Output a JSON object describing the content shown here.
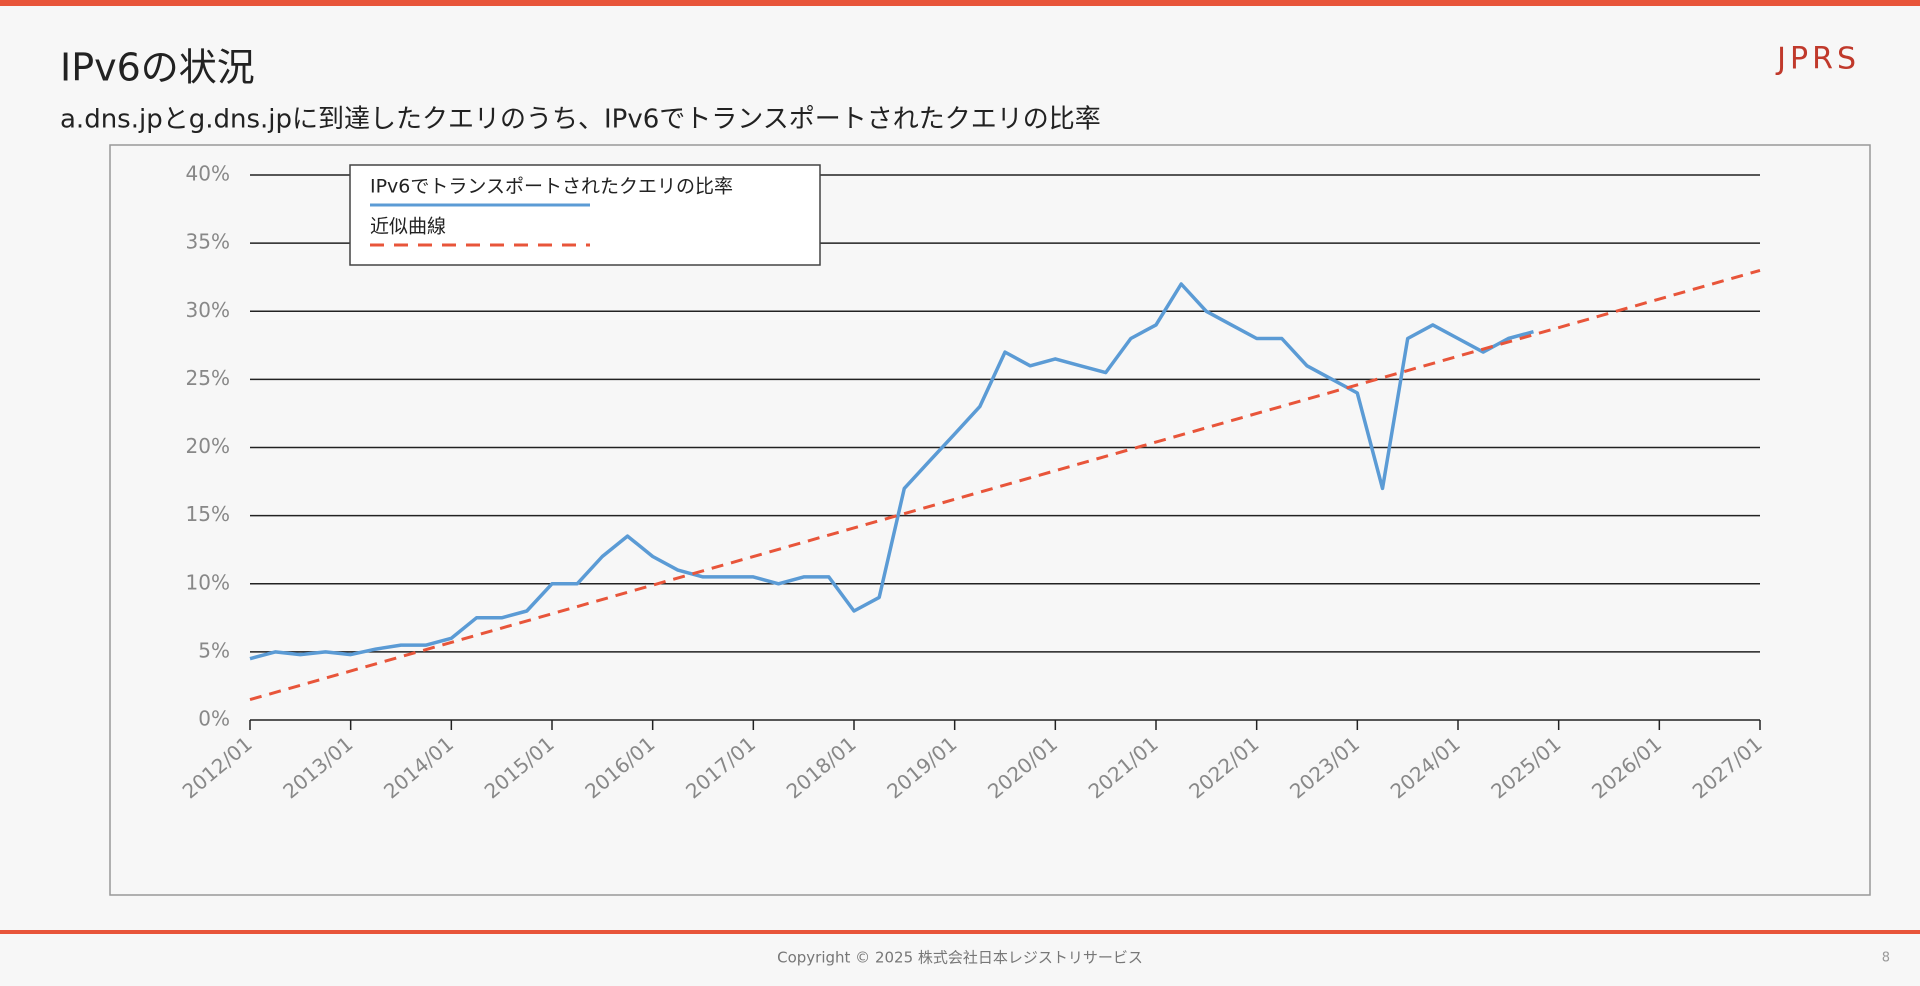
{
  "header": {
    "title": "IPv6の状況",
    "subtitle": "a.dns.jpとg.dns.jpに到達したクエリのうち、IPv6でトランスポートされたクエリの比率",
    "logo": "JPRS"
  },
  "footer": {
    "copyright": "Copyright © 2025 株式会社日本レジストリサービス",
    "page_number": "8"
  },
  "chart_data": {
    "type": "line",
    "series": [
      {
        "name": "IPv6でトランスポートされたクエリの比率",
        "color": "#5b9bd5",
        "line_style": "solid",
        "x": [
          "2012/01",
          "2012/04",
          "2012/07",
          "2012/10",
          "2013/01",
          "2013/04",
          "2013/07",
          "2013/10",
          "2014/01",
          "2014/04",
          "2014/07",
          "2014/10",
          "2015/01",
          "2015/04",
          "2015/07",
          "2015/10",
          "2016/01",
          "2016/04",
          "2016/07",
          "2016/10",
          "2017/01",
          "2017/04",
          "2017/07",
          "2017/10",
          "2018/01",
          "2018/04",
          "2018/07",
          "2018/10",
          "2019/01",
          "2019/04",
          "2019/07",
          "2019/10",
          "2020/01",
          "2020/04",
          "2020/07",
          "2020/10",
          "2021/01",
          "2021/04",
          "2021/07",
          "2021/10",
          "2022/01",
          "2022/04",
          "2022/07",
          "2022/10",
          "2023/01",
          "2023/04",
          "2023/07",
          "2023/10",
          "2024/01",
          "2024/04",
          "2024/07",
          "2024/10"
        ],
        "values": [
          4.5,
          5,
          4.8,
          5,
          4.8,
          5.2,
          5.5,
          5.5,
          6,
          7.5,
          7.5,
          8,
          10,
          10,
          12,
          13.5,
          12,
          11,
          10.5,
          10.5,
          10.5,
          10,
          10.5,
          10.5,
          8,
          9,
          17,
          19,
          21,
          23,
          27,
          26,
          26.5,
          26,
          25.5,
          28,
          29,
          32,
          30,
          29,
          28,
          28,
          26,
          25,
          24,
          17,
          28,
          29,
          28,
          27,
          28,
          28.5
        ]
      },
      {
        "name": "近似曲線",
        "color": "#e8553a",
        "line_style": "dashed",
        "x": [
          "2012/01",
          "2027/01"
        ],
        "values": [
          1.5,
          33
        ]
      }
    ],
    "xlim": [
      "2012/01",
      "2027/01"
    ],
    "xticks": [
      "2012/01",
      "2013/01",
      "2014/01",
      "2015/01",
      "2016/01",
      "2017/01",
      "2018/01",
      "2019/01",
      "2020/01",
      "2021/01",
      "2022/01",
      "2023/01",
      "2024/01",
      "2025/01",
      "2026/01",
      "2027/01"
    ],
    "ylim": [
      0,
      40
    ],
    "yticks": [
      {
        "value": 0,
        "label": "0%"
      },
      {
        "value": 5,
        "label": "5%"
      },
      {
        "value": 10,
        "label": "10%"
      },
      {
        "value": 15,
        "label": "15%"
      },
      {
        "value": 20,
        "label": "20%"
      },
      {
        "value": 25,
        "label": "25%"
      },
      {
        "value": 30,
        "label": "30%"
      },
      {
        "value": 35,
        "label": "35%"
      },
      {
        "value": 40,
        "label": "40%"
      }
    ],
    "grid": true,
    "legend": "top-left"
  }
}
